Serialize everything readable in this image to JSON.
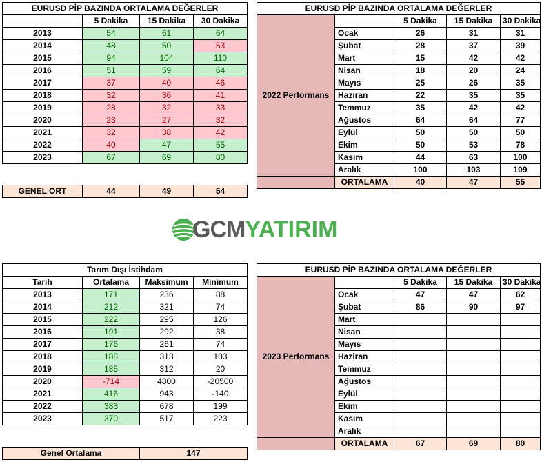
{
  "table1": {
    "title": "EURUSD  PİP BAZINDA ORTALAMA DEĞERLER",
    "headers": [
      "",
      "5 Dakika",
      "15 Dakika",
      "30 Dakika"
    ],
    "rows": [
      {
        "year": "2013",
        "values": [
          "54",
          "61",
          "64"
        ],
        "status": [
          "g",
          "g",
          "g"
        ]
      },
      {
        "year": "2014",
        "values": [
          "48",
          "50",
          "53"
        ],
        "status": [
          "g",
          "g",
          "r"
        ]
      },
      {
        "year": "2015",
        "values": [
          "94",
          "104",
          "110"
        ],
        "status": [
          "g",
          "g",
          "g"
        ]
      },
      {
        "year": "2016",
        "values": [
          "51",
          "59",
          "64"
        ],
        "status": [
          "g",
          "g",
          "g"
        ]
      },
      {
        "year": "2017",
        "values": [
          "37",
          "40",
          "46"
        ],
        "status": [
          "r",
          "r",
          "r"
        ]
      },
      {
        "year": "2018",
        "values": [
          "32",
          "36",
          "41"
        ],
        "status": [
          "r",
          "r",
          "r"
        ]
      },
      {
        "year": "2019",
        "values": [
          "28",
          "32",
          "33"
        ],
        "status": [
          "r",
          "r",
          "r"
        ]
      },
      {
        "year": "2020",
        "values": [
          "23",
          "27",
          "32"
        ],
        "status": [
          "r",
          "r",
          "r"
        ]
      },
      {
        "year": "2021",
        "values": [
          "32",
          "38",
          "42"
        ],
        "status": [
          "r",
          "r",
          "r"
        ]
      },
      {
        "year": "2022",
        "values": [
          "40",
          "47",
          "55"
        ],
        "status": [
          "r",
          "g",
          "g"
        ]
      },
      {
        "year": "2023",
        "values": [
          "67",
          "69",
          "80"
        ],
        "status": [
          "g",
          "g",
          "g"
        ]
      }
    ],
    "footer": {
      "label": "GENEL ORT",
      "values": [
        "44",
        "49",
        "54"
      ]
    }
  },
  "table2": {
    "title": "EURUSD  PİP BAZINDA ORTALAMA DEĞERLER",
    "headers": [
      "5 Dakika",
      "15 Dakika",
      "30 Dakika"
    ],
    "side_label": "2022 Performans",
    "rows": [
      {
        "month": "Ocak",
        "values": [
          "26",
          "31",
          "31"
        ]
      },
      {
        "month": "Şubat",
        "values": [
          "28",
          "37",
          "39"
        ]
      },
      {
        "month": "Mart",
        "values": [
          "15",
          "42",
          "42"
        ]
      },
      {
        "month": "Nisan",
        "values": [
          "18",
          "20",
          "24"
        ]
      },
      {
        "month": "Mayıs",
        "values": [
          "25",
          "26",
          "35"
        ]
      },
      {
        "month": "Haziran",
        "values": [
          "22",
          "35",
          "35"
        ]
      },
      {
        "month": "Temmuz",
        "values": [
          "35",
          "42",
          "42"
        ]
      },
      {
        "month": "Ağustos",
        "values": [
          "64",
          "64",
          "77"
        ]
      },
      {
        "month": "Eylül",
        "values": [
          "50",
          "50",
          "50"
        ]
      },
      {
        "month": "Ekim",
        "values": [
          "50",
          "53",
          "78"
        ]
      },
      {
        "month": "Kasım",
        "values": [
          "44",
          "63",
          "100"
        ]
      },
      {
        "month": "Aralık",
        "values": [
          "100",
          "103",
          "109"
        ]
      }
    ],
    "footer": {
      "label": "ORTALAMA",
      "values": [
        "40",
        "47",
        "55"
      ]
    }
  },
  "logo": {
    "part1": "GCM",
    "part2": "YATIRIM"
  },
  "table3": {
    "title": "Tarım Dışı İstihdam",
    "headers": [
      "Tarih",
      "Ortalama",
      "Maksimum",
      "Minimum"
    ],
    "rows": [
      {
        "year": "2013",
        "avg": "171",
        "status": "g",
        "max": "236",
        "min": "88"
      },
      {
        "year": "2014",
        "avg": "212",
        "status": "g",
        "max": "321",
        "min": "74"
      },
      {
        "year": "2015",
        "avg": "222",
        "status": "g",
        "max": "295",
        "min": "126"
      },
      {
        "year": "2016",
        "avg": "191",
        "status": "g",
        "max": "292",
        "min": "38"
      },
      {
        "year": "2017",
        "avg": "176",
        "status": "g",
        "max": "261",
        "min": "74"
      },
      {
        "year": "2018",
        "avg": "188",
        "status": "g",
        "max": "313",
        "min": "103"
      },
      {
        "year": "2019",
        "avg": "185",
        "status": "g",
        "max": "312",
        "min": "20"
      },
      {
        "year": "2020",
        "avg": "-714",
        "status": "r",
        "max": "4800",
        "min": "-20500"
      },
      {
        "year": "2021",
        "avg": "416",
        "status": "g",
        "max": "943",
        "min": "-140"
      },
      {
        "year": "2022",
        "avg": "383",
        "status": "g",
        "max": "678",
        "min": "199"
      },
      {
        "year": "2023",
        "avg": "370",
        "status": "g",
        "max": "517",
        "min": "223"
      }
    ],
    "footer": {
      "label": "Genel Ortalama",
      "value": "147"
    }
  },
  "table4": {
    "title": "EURUSD  PİP BAZINDA ORTALAMA DEĞERLER",
    "headers": [
      "5 Dakika",
      "15 Dakika",
      "30 Dakika"
    ],
    "side_label": "2023 Performans",
    "rows": [
      {
        "month": "Ocak",
        "values": [
          "47",
          "47",
          "62"
        ]
      },
      {
        "month": "Şubat",
        "values": [
          "86",
          "90",
          "97"
        ]
      },
      {
        "month": "Mart",
        "values": [
          "",
          "",
          ""
        ]
      },
      {
        "month": "Nisan",
        "values": [
          "",
          "",
          ""
        ]
      },
      {
        "month": "Mayıs",
        "values": [
          "",
          "",
          ""
        ]
      },
      {
        "month": "Haziran",
        "values": [
          "",
          "",
          ""
        ]
      },
      {
        "month": "Temmuz",
        "values": [
          "",
          "",
          ""
        ]
      },
      {
        "month": "Ağustos",
        "values": [
          "",
          "",
          ""
        ]
      },
      {
        "month": "Eylül",
        "values": [
          "",
          "",
          ""
        ]
      },
      {
        "month": "Ekim",
        "values": [
          "",
          "",
          ""
        ]
      },
      {
        "month": "Kasım",
        "values": [
          "",
          "",
          ""
        ]
      },
      {
        "month": "Aralık",
        "values": [
          "",
          "",
          ""
        ]
      }
    ],
    "footer": {
      "label": "ORTALAMA",
      "values": [
        "67",
        "69",
        "80"
      ]
    }
  },
  "colors": {
    "positive_bg": "#c6efce",
    "positive_text": "#006100",
    "negative_bg": "#ffc7ce",
    "negative_text": "#9c0006",
    "footer_bg": "#fce4d6",
    "perf_bg": "#e6b8b7",
    "logo_green": "#4caf50",
    "logo_gray": "#5a5a5a"
  }
}
